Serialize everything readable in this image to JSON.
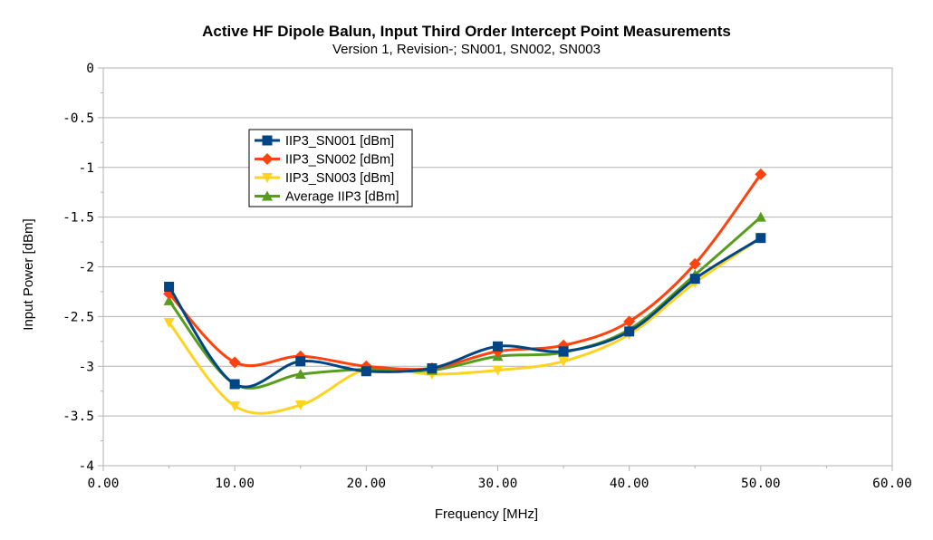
{
  "chart_data": {
    "type": "line",
    "title": "Active HF Dipole Balun, Input Third Order Intercept Point Measurements",
    "subtitle": "Version 1, Revision-; SN001, SN002, SN003",
    "xlabel": "Frequency [MHz]",
    "ylabel": "Input Power [dBm]",
    "xlim": [
      0,
      60
    ],
    "ylim": [
      -4,
      0
    ],
    "x_ticks": [
      "0.00",
      "10.00",
      "20.00",
      "30.00",
      "40.00",
      "50.00",
      "60.00"
    ],
    "y_ticks": [
      "0",
      "-0.5",
      "-1",
      "-1.5",
      "-2",
      "-2.5",
      "-3",
      "-3.5",
      "-4"
    ],
    "grid": "horizontal",
    "legend_position": "upper-left",
    "x": [
      5,
      10,
      15,
      20,
      25,
      30,
      35,
      40,
      45,
      50
    ],
    "series": [
      {
        "name": "IIP3_SN001 [dBm]",
        "color": "#004586",
        "marker": "square",
        "values": [
          -2.2,
          -3.18,
          -2.95,
          -3.05,
          -3.02,
          -2.8,
          -2.85,
          -2.65,
          -2.12,
          -1.71
        ]
      },
      {
        "name": "IIP3_SN002 [dBm]",
        "color": "#ff420e",
        "marker": "diamond",
        "values": [
          -2.27,
          -2.96,
          -2.9,
          -3.0,
          -3.02,
          -2.85,
          -2.79,
          -2.55,
          -1.97,
          -1.07
        ]
      },
      {
        "name": "IIP3_SN003 [dBm]",
        "color": "#ffd320",
        "marker": "triangle-down",
        "values": [
          -2.56,
          -3.4,
          -3.39,
          -3.03,
          -3.08,
          -3.04,
          -2.95,
          -2.68,
          -2.16,
          -1.71
        ]
      },
      {
        "name": "Average IIP3 [dBm]",
        "color": "#579d1c",
        "marker": "triangle-up",
        "values": [
          -2.34,
          -3.18,
          -3.08,
          -3.03,
          -3.04,
          -2.9,
          -2.86,
          -2.63,
          -2.08,
          -1.5
        ]
      }
    ]
  }
}
